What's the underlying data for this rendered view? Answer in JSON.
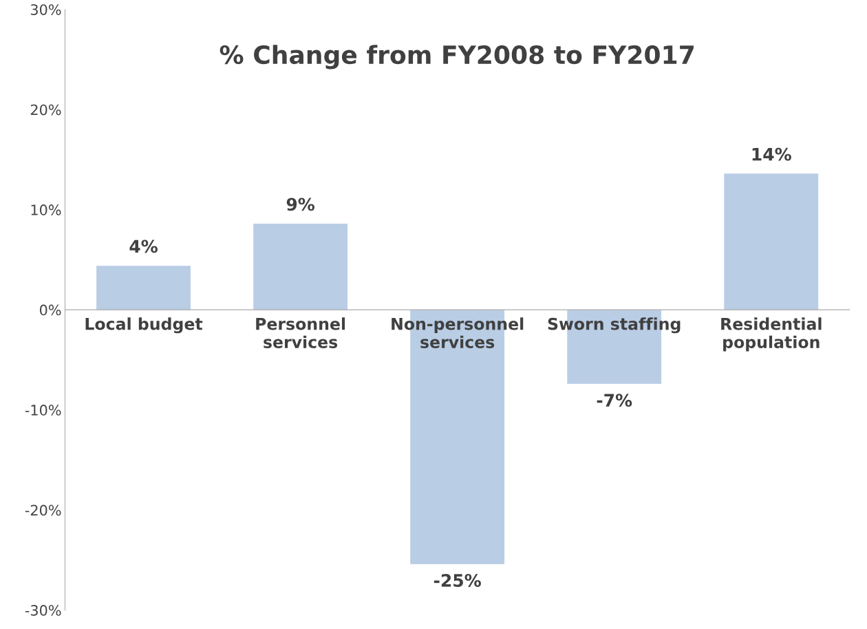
{
  "chart_data": {
    "type": "bar",
    "title": "% Change from FY2008 to FY2017",
    "categories": [
      "Local budget",
      "Personnel\nservices",
      "Non-personnel\nservices",
      "Sworn staffing",
      "Residential\npopulation"
    ],
    "values": [
      4.4,
      8.6,
      -25.4,
      -7.4,
      13.6
    ],
    "value_labels": [
      "4%",
      "9%",
      "-25%",
      "-7%",
      "14%"
    ],
    "color": "#b9cde5",
    "ylim": [
      -30,
      30
    ],
    "yticks": [
      {
        "value": -30,
        "label": "-30%"
      },
      {
        "value": -20,
        "label": "-20%"
      },
      {
        "value": -10,
        "label": "-10%"
      },
      {
        "value": 0,
        "label": "0%"
      },
      {
        "value": 10,
        "label": "10%"
      },
      {
        "value": 20,
        "label": "20%"
      },
      {
        "value": 30,
        "label": "30%"
      }
    ],
    "grid": false
  }
}
